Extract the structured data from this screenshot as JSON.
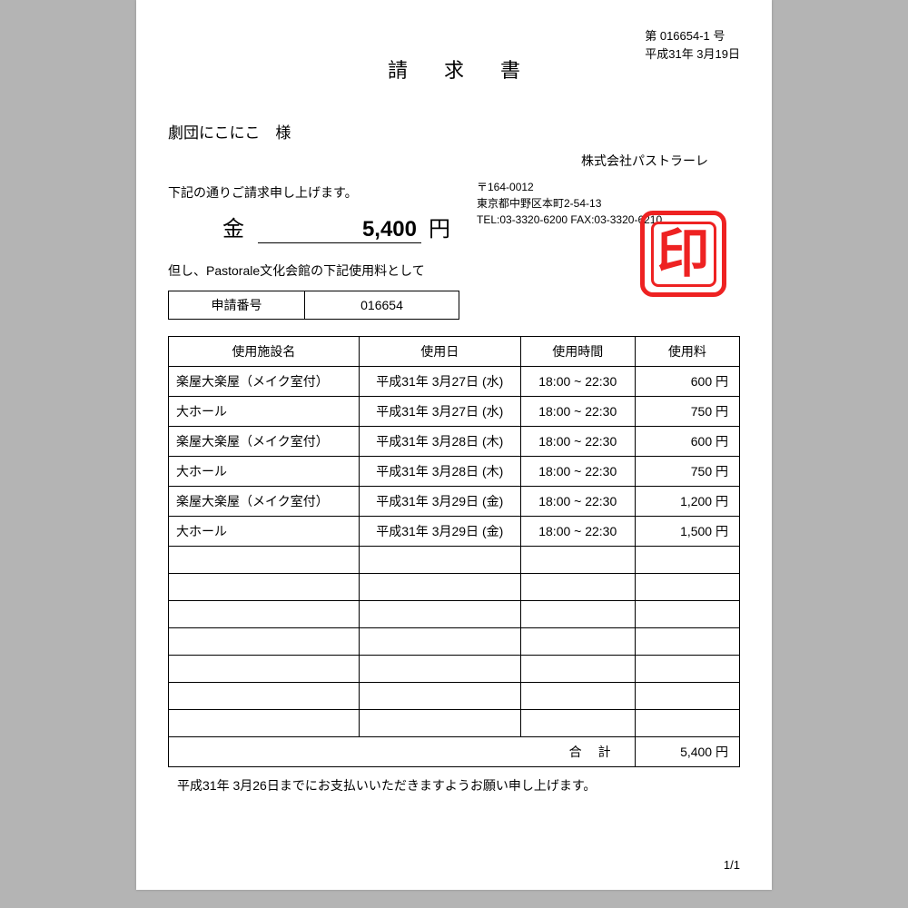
{
  "meta": {
    "doc_number": "第 016654-1 号",
    "issue_date": "平成31年 3月19日"
  },
  "title": "請求書",
  "recipient": "劇団にこにこ　様",
  "company": "株式会社パストラーレ",
  "intro": "下記の通りご請求申し上げます。",
  "amount": {
    "label": "金",
    "value": "5,400",
    "unit": "円"
  },
  "note": "但し、Pastorale文化会館の下記使用料として",
  "issuer": {
    "postal": "〒164-0012",
    "address": "東京都中野区本町2-54-13",
    "contact": "TEL:03-3320-6200 FAX:03-3320-6210"
  },
  "seal_char": "印",
  "application": {
    "label": "申請番号",
    "number": "016654"
  },
  "table": {
    "headers": {
      "facility": "使用施設名",
      "date": "使用日",
      "time": "使用時間",
      "fee": "使用料"
    },
    "rows": [
      {
        "facility": "楽屋大楽屋（メイク室付）",
        "date": "平成31年 3月27日 (水)",
        "time": "18:00 ~ 22:30",
        "fee": "600 円"
      },
      {
        "facility": "大ホール",
        "date": "平成31年 3月27日 (水)",
        "time": "18:00 ~ 22:30",
        "fee": "750 円"
      },
      {
        "facility": "楽屋大楽屋（メイク室付）",
        "date": "平成31年 3月28日 (木)",
        "time": "18:00 ~ 22:30",
        "fee": "600 円"
      },
      {
        "facility": "大ホール",
        "date": "平成31年 3月28日 (木)",
        "time": "18:00 ~ 22:30",
        "fee": "750 円"
      },
      {
        "facility": "楽屋大楽屋（メイク室付）",
        "date": "平成31年 3月29日 (金)",
        "time": "18:00 ~ 22:30",
        "fee": "1,200 円"
      },
      {
        "facility": "大ホール",
        "date": "平成31年 3月29日 (金)",
        "time": "18:00 ~ 22:30",
        "fee": "1,500 円"
      }
    ],
    "empty_rows": 7,
    "total_label": "合計",
    "total_value": "5,400 円"
  },
  "footer_note": "平成31年 3月26日までにお支払いいただきますようお願い申し上げます。",
  "page_num": "1/1"
}
